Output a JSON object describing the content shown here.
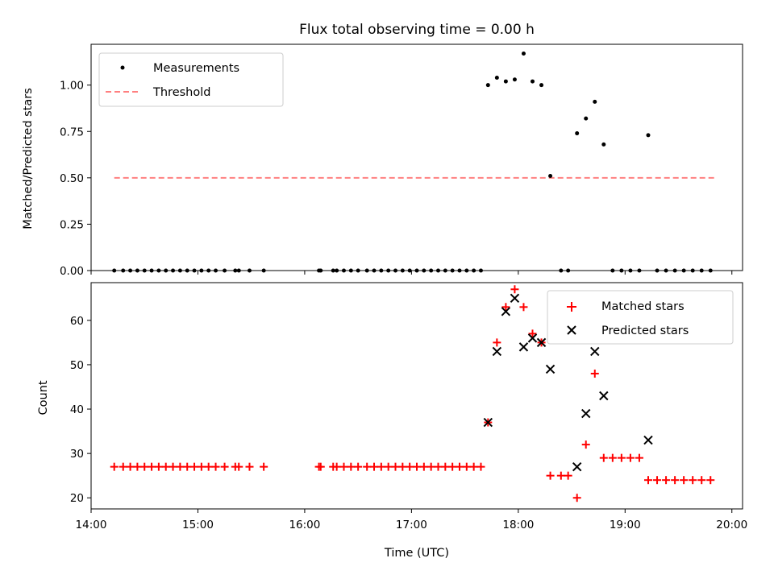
{
  "chart_data": [
    {
      "type": "scatter",
      "title": "Flux total observing time = 0.00 h",
      "xlabel": "",
      "ylabel": "Matched/Predicted stars",
      "xlim": [
        "14:00",
        "20:06"
      ],
      "ylim": [
        0,
        1.22
      ],
      "yticks": [
        "0.00",
        "0.25",
        "0.50",
        "0.75",
        "1.00"
      ],
      "legend_position": "top-left",
      "series": [
        {
          "name": "Measurements",
          "kind": "dot",
          "color": "#000000",
          "points": [
            [
              "14:13",
              0
            ],
            [
              "14:18",
              0
            ],
            [
              "14:22",
              0
            ],
            [
              "14:26",
              0
            ],
            [
              "14:30",
              0
            ],
            [
              "14:34",
              0
            ],
            [
              "14:38",
              0
            ],
            [
              "14:42",
              0
            ],
            [
              "14:46",
              0
            ],
            [
              "14:50",
              0
            ],
            [
              "14:54",
              0
            ],
            [
              "14:58",
              0
            ],
            [
              "15:02",
              0
            ],
            [
              "15:06",
              0
            ],
            [
              "15:10",
              0
            ],
            [
              "15:15",
              0
            ],
            [
              "15:21",
              0
            ],
            [
              "15:23",
              0
            ],
            [
              "15:29",
              0
            ],
            [
              "15:37",
              0
            ],
            [
              "16:08",
              0
            ],
            [
              "16:09",
              0
            ],
            [
              "16:16",
              0
            ],
            [
              "16:18",
              0
            ],
            [
              "16:22",
              0
            ],
            [
              "16:26",
              0
            ],
            [
              "16:30",
              0
            ],
            [
              "16:35",
              0
            ],
            [
              "16:39",
              0
            ],
            [
              "16:43",
              0
            ],
            [
              "16:47",
              0
            ],
            [
              "16:51",
              0
            ],
            [
              "16:55",
              0
            ],
            [
              "16:59",
              0
            ],
            [
              "17:03",
              0
            ],
            [
              "17:07",
              0
            ],
            [
              "17:11",
              0
            ],
            [
              "17:15",
              0
            ],
            [
              "17:19",
              0
            ],
            [
              "17:23",
              0
            ],
            [
              "17:27",
              0
            ],
            [
              "17:31",
              0
            ],
            [
              "17:35",
              0
            ],
            [
              "17:39",
              0
            ],
            [
              "17:43",
              1.0
            ],
            [
              "17:48",
              1.04
            ],
            [
              "17:53",
              1.02
            ],
            [
              "17:58",
              1.03
            ],
            [
              "18:03",
              1.17
            ],
            [
              "18:08",
              1.02
            ],
            [
              "18:13",
              1.0
            ],
            [
              "18:18",
              0.51
            ],
            [
              "18:24",
              0
            ],
            [
              "18:28",
              0
            ],
            [
              "18:33",
              0.74
            ],
            [
              "18:38",
              0.82
            ],
            [
              "18:43",
              0.91
            ],
            [
              "18:48",
              0.68
            ],
            [
              "18:53",
              0
            ],
            [
              "18:58",
              0
            ],
            [
              "19:03",
              0
            ],
            [
              "19:08",
              0
            ],
            [
              "19:13",
              0.73
            ],
            [
              "19:18",
              0
            ],
            [
              "19:23",
              0
            ],
            [
              "19:28",
              0
            ],
            [
              "19:33",
              0
            ],
            [
              "19:38",
              0
            ],
            [
              "19:43",
              0
            ],
            [
              "19:48",
              0
            ]
          ]
        },
        {
          "name": "Threshold",
          "kind": "dashed-line",
          "color": "#ff8080",
          "points": [
            [
              "14:13",
              0.5
            ],
            [
              "19:50",
              0.5
            ]
          ]
        }
      ]
    },
    {
      "type": "scatter",
      "title": "",
      "xlabel": "Time (UTC)",
      "ylabel": "Count",
      "xlim": [
        "14:00",
        "20:06"
      ],
      "ylim": [
        17.5,
        68.5
      ],
      "yticks": [
        "20",
        "30",
        "40",
        "50",
        "60"
      ],
      "xticks": [
        "14:00",
        "15:00",
        "16:00",
        "17:00",
        "18:00",
        "19:00",
        "20:00"
      ],
      "legend_position": "top-right",
      "series": [
        {
          "name": "Matched stars",
          "kind": "plus",
          "color": "#ff0000",
          "points": [
            [
              "14:13",
              27
            ],
            [
              "14:18",
              27
            ],
            [
              "14:22",
              27
            ],
            [
              "14:26",
              27
            ],
            [
              "14:30",
              27
            ],
            [
              "14:34",
              27
            ],
            [
              "14:38",
              27
            ],
            [
              "14:42",
              27
            ],
            [
              "14:46",
              27
            ],
            [
              "14:50",
              27
            ],
            [
              "14:54",
              27
            ],
            [
              "14:58",
              27
            ],
            [
              "15:02",
              27
            ],
            [
              "15:06",
              27
            ],
            [
              "15:10",
              27
            ],
            [
              "15:15",
              27
            ],
            [
              "15:21",
              27
            ],
            [
              "15:23",
              27
            ],
            [
              "15:29",
              27
            ],
            [
              "15:37",
              27
            ],
            [
              "16:08",
              27
            ],
            [
              "16:09",
              27
            ],
            [
              "16:16",
              27
            ],
            [
              "16:18",
              27
            ],
            [
              "16:22",
              27
            ],
            [
              "16:26",
              27
            ],
            [
              "16:30",
              27
            ],
            [
              "16:35",
              27
            ],
            [
              "16:39",
              27
            ],
            [
              "16:43",
              27
            ],
            [
              "16:47",
              27
            ],
            [
              "16:51",
              27
            ],
            [
              "16:55",
              27
            ],
            [
              "16:59",
              27
            ],
            [
              "17:03",
              27
            ],
            [
              "17:07",
              27
            ],
            [
              "17:11",
              27
            ],
            [
              "17:15",
              27
            ],
            [
              "17:19",
              27
            ],
            [
              "17:23",
              27
            ],
            [
              "17:27",
              27
            ],
            [
              "17:31",
              27
            ],
            [
              "17:35",
              27
            ],
            [
              "17:39",
              27
            ],
            [
              "17:43",
              37
            ],
            [
              "17:48",
              55
            ],
            [
              "17:53",
              63
            ],
            [
              "17:58",
              67
            ],
            [
              "18:03",
              63
            ],
            [
              "18:08",
              57
            ],
            [
              "18:13",
              55
            ],
            [
              "18:18",
              25
            ],
            [
              "18:24",
              25
            ],
            [
              "18:28",
              25
            ],
            [
              "18:33",
              20
            ],
            [
              "18:38",
              32
            ],
            [
              "18:43",
              48
            ],
            [
              "18:48",
              29
            ],
            [
              "18:53",
              29
            ],
            [
              "18:58",
              29
            ],
            [
              "19:03",
              29
            ],
            [
              "19:08",
              29
            ],
            [
              "19:13",
              24
            ],
            [
              "19:18",
              24
            ],
            [
              "19:23",
              24
            ],
            [
              "19:28",
              24
            ],
            [
              "19:33",
              24
            ],
            [
              "19:38",
              24
            ],
            [
              "19:43",
              24
            ],
            [
              "19:48",
              24
            ]
          ]
        },
        {
          "name": "Predicted stars",
          "kind": "x",
          "color": "#000000",
          "points": [
            [
              "17:43",
              37
            ],
            [
              "17:48",
              53
            ],
            [
              "17:53",
              62
            ],
            [
              "17:58",
              65
            ],
            [
              "18:03",
              54
            ],
            [
              "18:08",
              56
            ],
            [
              "18:13",
              55
            ],
            [
              "18:18",
              49
            ],
            [
              "18:33",
              27
            ],
            [
              "18:38",
              39
            ],
            [
              "18:43",
              53
            ],
            [
              "18:48",
              43
            ],
            [
              "19:13",
              33
            ]
          ]
        }
      ]
    }
  ]
}
